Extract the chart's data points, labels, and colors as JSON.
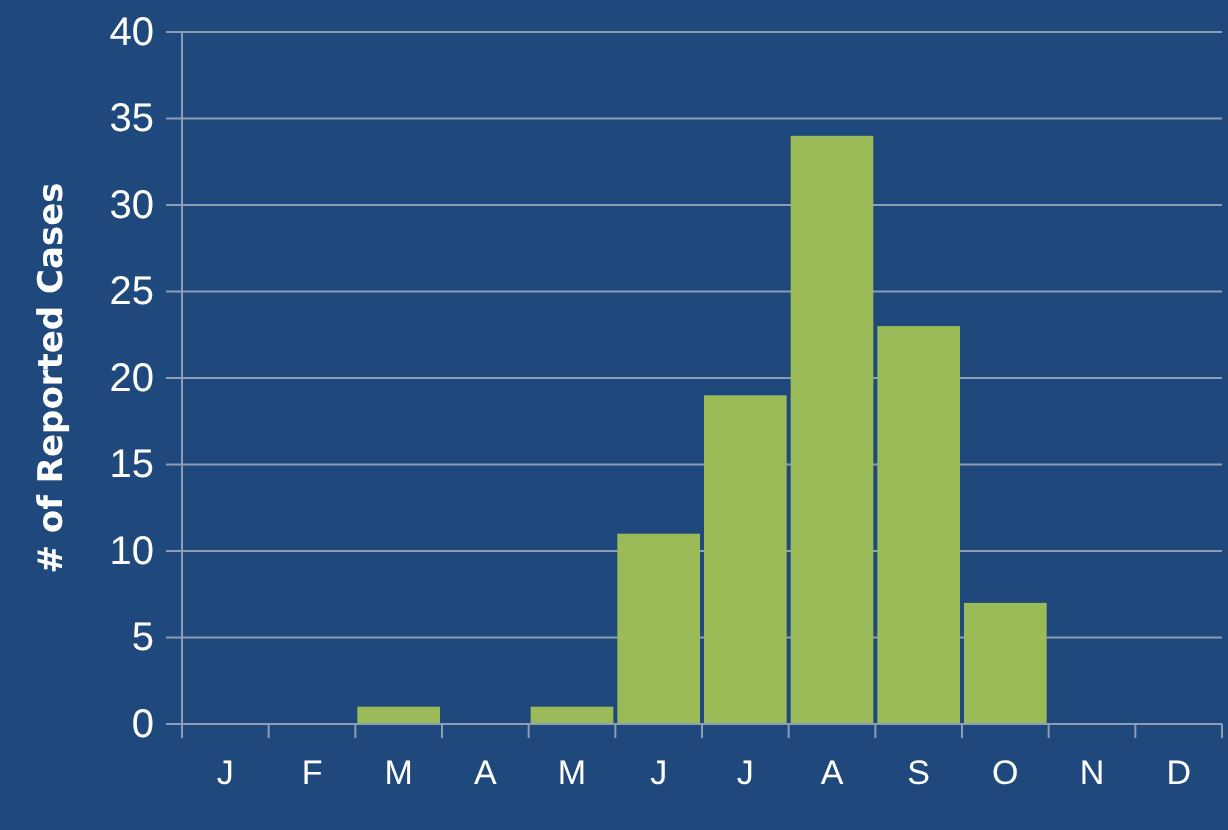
{
  "chart_data": {
    "type": "bar",
    "ylabel": "# of Reported Cases",
    "categories": [
      "J",
      "F",
      "M",
      "A",
      "M",
      "J",
      "J",
      "A",
      "S",
      "O",
      "N",
      "D"
    ],
    "values": [
      0,
      0,
      1,
      0,
      1,
      11,
      19,
      34,
      23,
      7,
      0,
      0
    ],
    "color": "#9bbb59",
    "ylim": [
      0,
      40
    ],
    "yticks": [
      0,
      5,
      10,
      15,
      20,
      25,
      30,
      35,
      40
    ],
    "grid": "y"
  }
}
